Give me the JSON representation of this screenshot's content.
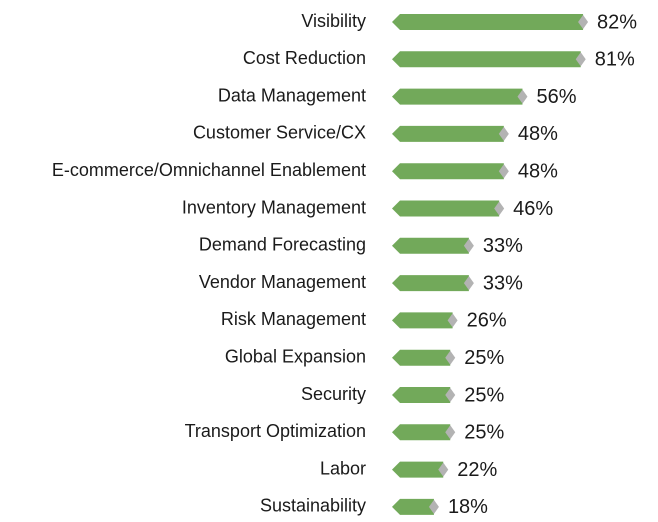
{
  "chart_data": {
    "type": "bar",
    "categories": [
      "Visibility",
      "Cost Reduction",
      "Data Management",
      "Customer Service/CX",
      "E-commerce/Omnichannel Enablement",
      "Inventory Management",
      "Demand Forecasting",
      "Vendor Management",
      "Risk Management",
      "Global Expansion",
      "Security",
      "Transport Optimization",
      "Labor",
      "Sustainability"
    ],
    "values": [
      82,
      81,
      56,
      48,
      48,
      46,
      33,
      33,
      26,
      25,
      25,
      25,
      22,
      18
    ],
    "value_labels": [
      "82%",
      "81%",
      "56%",
      "48%",
      "48%",
      "46%",
      "33%",
      "33%",
      "26%",
      "25%",
      "25%",
      "25%",
      "22%",
      "18%"
    ],
    "color": "#72a95a",
    "marker_color": "#b3b3b3"
  }
}
